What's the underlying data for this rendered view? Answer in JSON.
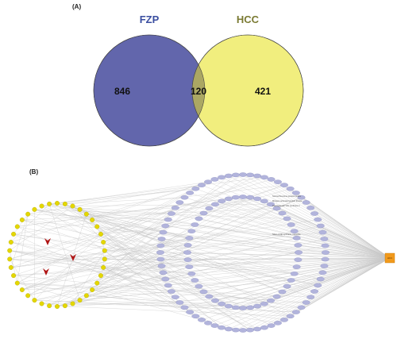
{
  "panel_a": {
    "label": "(A)",
    "sets": [
      {
        "name": "FZP",
        "color": "#6266ac",
        "title_color": "#3a4ea0"
      },
      {
        "name": "HCC",
        "color": "#f1ee7e",
        "title_color": "#7a7a32"
      }
    ],
    "counts": {
      "left_only": "846",
      "intersection": "120",
      "right_only": "421"
    }
  },
  "panel_b": {
    "label": "(B)",
    "compound_node_color": "#e4d700",
    "target_node_color": "#b2b4dc",
    "disease_node_color": "#f29a1c",
    "edge_color": "#c8c8c8",
    "arrow_color": "#b01515",
    "disease_label": "HCC",
    "compound_count": 38,
    "outer_target_count": 72,
    "inner_target_count": 48,
    "annotations": [
      "Serine/threonine-protein kinase",
      "Mitogen-activated protein kinase",
      "Prostaglandin G/H synthase 2",
      "Nitric oxide synthase, inducible"
    ]
  }
}
